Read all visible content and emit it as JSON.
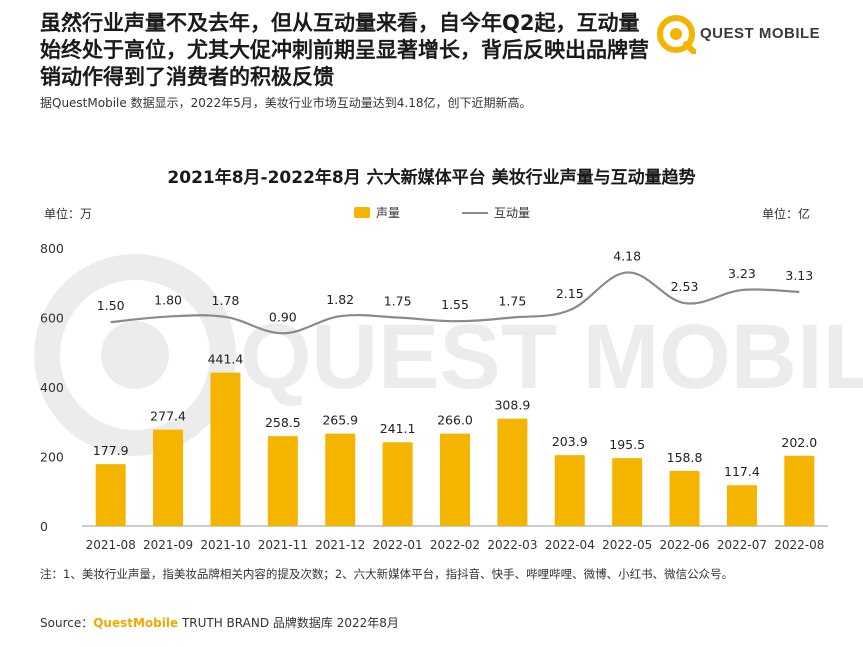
{
  "headline": "虽然行业声量不及去年，但从互动量来看，自今年Q2起，互动量始终处于高位，尤其大促冲刺前期呈显著增长，背后反映出品牌营销动作得到了消费者的积极反馈",
  "logo": {
    "text": "QUEST MOBILE",
    "watermark": "QUEST MOBILE"
  },
  "subline": "据QuestMobile 数据显示，2022年5月，美妆行业市场互动量达到4.18亿，创下近期新高。",
  "colors": {
    "bar": "#f5b400",
    "line": "#8a8a8a",
    "brand": "#f2a900"
  },
  "chart_data": {
    "type": "bar",
    "title": "2021年8月-2022年8月 六大新媒体平台 美妆行业声量与互动量趋势",
    "left_unit": "单位：万",
    "right_unit": "单位：亿",
    "legend": [
      "声量",
      "互动量"
    ],
    "categories": [
      "2021-08",
      "2021-09",
      "2021-10",
      "2021-11",
      "2021-12",
      "2022-01",
      "2022-02",
      "2022-03",
      "2022-04",
      "2022-05",
      "2022-06",
      "2022-07",
      "2022-08"
    ],
    "series": [
      {
        "name": "声量",
        "type": "bar",
        "axis": "left",
        "values": [
          177.9,
          277.4,
          441.4,
          258.5,
          265.9,
          241.1,
          266.0,
          308.9,
          203.9,
          195.5,
          158.8,
          117.4,
          202.0
        ]
      },
      {
        "name": "互动量",
        "type": "line",
        "axis": "right",
        "values": [
          1.5,
          1.8,
          1.78,
          0.9,
          1.82,
          1.75,
          1.55,
          1.75,
          2.15,
          4.18,
          2.53,
          3.23,
          3.13
        ]
      }
    ],
    "left_axis": {
      "ylim": [
        0,
        800
      ],
      "ticks": [
        0,
        200,
        400,
        600,
        800
      ]
    },
    "right_axis": {
      "ylim": [
        -9.5,
        5.5
      ],
      "ticks_shown": false
    },
    "grid": false,
    "legend_position": "top-center"
  },
  "note": "注：1、美妆行业声量，指美妆品牌相关内容的提及次数；2、六大新媒体平台，指抖音、快手、哔哩哔哩、微博、小红书、微信公众号。",
  "source": {
    "prefix": "Source：",
    "brand": "QuestMobile",
    "suffix": " TRUTH BRAND 品牌数据库 2022年8月"
  }
}
